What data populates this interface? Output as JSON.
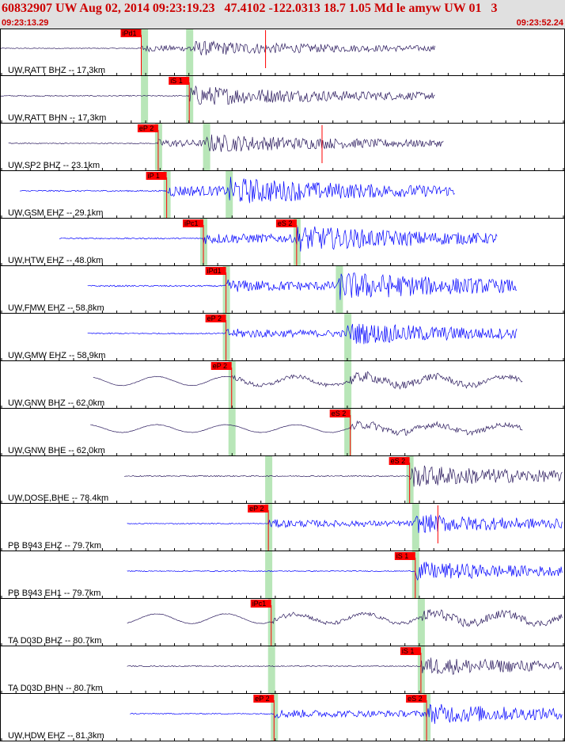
{
  "header": {
    "title": "60832907 UW Aug 02, 2014 09:23:19.23   47.4102 -122.0313 18.7 1.05 Md le amyw UW 01   3",
    "time_start": "09:23:13.29",
    "time_end": "09:23:52.24"
  },
  "colors": {
    "trace_dark": "#2b1a5e",
    "trace_blue": "#0000ff",
    "pick_box": "#ff0000",
    "pick_window": "#b8e6b8",
    "header_text": "#cc0000",
    "header_bg": "#e0e0e0"
  },
  "traces": [
    {
      "label": "UW,RATT BHZ -- 17.3km",
      "color": "dark",
      "start": 0.0,
      "end": 0.77,
      "amp": 0.45,
      "picks": [
        {
          "label": "iPd1",
          "t": 0.25,
          "window": 0.255
        },
        {
          "t": 0.47,
          "tick": true
        }
      ],
      "greens": [
        0.255,
        0.335
      ]
    },
    {
      "label": "UW,RATT BHN -- 17.3km",
      "color": "dark",
      "start": 0.0,
      "end": 0.77,
      "amp": 0.6,
      "picks": [
        {
          "label": "iS 1",
          "t": 0.335
        }
      ],
      "greens": [
        0.255,
        0.335
      ]
    },
    {
      "label": "UW,SP2 BHZ -- 23.1km",
      "color": "dark",
      "start": 0.015,
      "end": 0.785,
      "amp": 0.55,
      "picks": [
        {
          "label": "eP 2",
          "t": 0.28
        },
        {
          "t": 0.57,
          "tick": true
        }
      ],
      "greens": [
        0.28,
        0.365
      ]
    },
    {
      "label": "UW,GSM EHZ -- 29.1km",
      "color": "blue",
      "start": 0.035,
      "end": 0.805,
      "amp": 0.8,
      "picks": [
        {
          "label": "iP 1",
          "t": 0.295
        }
      ],
      "greens": [
        0.295,
        0.405
      ]
    },
    {
      "label": "UW,HTW EHZ -- 48.0km",
      "color": "blue",
      "start": 0.105,
      "end": 0.88,
      "amp": 0.75,
      "picks": [
        {
          "label": "iPc1",
          "t": 0.36
        },
        {
          "label": "eS 2",
          "t": 0.525
        }
      ],
      "greens": [
        0.36,
        0.525
      ]
    },
    {
      "label": "UW,FMW EHZ -- 58.8km",
      "color": "blue",
      "start": 0.155,
      "end": 0.915,
      "amp": 0.85,
      "picks": [
        {
          "label": "iPd1",
          "t": 0.4
        }
      ],
      "greens": [
        0.4,
        0.6
      ]
    },
    {
      "label": "UW,GMW EHZ -- 58.9km",
      "color": "blue",
      "start": 0.155,
      "end": 0.915,
      "amp": 0.65,
      "picks": [
        {
          "label": "eP 2",
          "t": 0.4
        }
      ],
      "greens": [
        0.4,
        0.615
      ]
    },
    {
      "label": "UW,GNW BHZ -- 62.0km",
      "color": "dark",
      "start": 0.165,
      "end": 0.925,
      "amp": 0.7,
      "wavy": true,
      "picks": [
        {
          "label": "eP 2",
          "t": 0.41
        }
      ],
      "greens": [
        0.41,
        0.615
      ]
    },
    {
      "label": "UW,GNW BHE -- 62.0km",
      "color": "dark",
      "start": 0.16,
      "end": 0.925,
      "amp": 0.6,
      "wavy": true,
      "picks": [
        {
          "label": "eS 2",
          "t": 0.62
        }
      ],
      "greens": [
        0.41,
        0.615
      ]
    },
    {
      "label": "UW,DOSE,BHE -- 78.4km",
      "color": "dark",
      "start": 0.22,
      "end": 0.995,
      "amp": 0.65,
      "picks": [
        {
          "label": "eS 2",
          "t": 0.725
        }
      ],
      "greens": [
        0.475,
        0.725
      ]
    },
    {
      "label": "PB B943 EHZ -- 79.7km",
      "color": "blue",
      "start": 0.225,
      "end": 0.995,
      "amp": 0.55,
      "picks": [
        {
          "label": "eP 2",
          "t": 0.475
        },
        {
          "t": 0.775,
          "tick": true
        }
      ],
      "greens": [
        0.475,
        0.735
      ]
    },
    {
      "label": "PB B943 EH1 -- 79.7km",
      "color": "blue",
      "start": 0.225,
      "end": 0.995,
      "amp": 0.55,
      "picks": [
        {
          "label": "iS 1",
          "t": 0.735
        }
      ],
      "greens": [
        0.475,
        0.735
      ]
    },
    {
      "label": "TA D03D BHZ -- 80.7km",
      "color": "dark",
      "start": 0.225,
      "end": 0.995,
      "amp": 0.75,
      "wavy": true,
      "picks": [
        {
          "label": "iPc1",
          "t": 0.48
        }
      ],
      "greens": [
        0.48,
        0.745
      ]
    },
    {
      "label": "TA D03D BHN -- 80.7km",
      "color": "dark",
      "start": 0.225,
      "end": 0.995,
      "amp": 0.55,
      "picks": [
        {
          "label": "iS 1",
          "t": 0.745
        }
      ],
      "greens": [
        0.48,
        0.745
      ]
    },
    {
      "label": "UW,HDW EHZ -- 81.3km",
      "color": "blue",
      "start": 0.23,
      "end": 0.995,
      "amp": 0.6,
      "picks": [
        {
          "label": "eP 2",
          "t": 0.485
        },
        {
          "label": "eS 2",
          "t": 0.755
        }
      ],
      "greens": [
        0.485,
        0.755
      ]
    }
  ]
}
